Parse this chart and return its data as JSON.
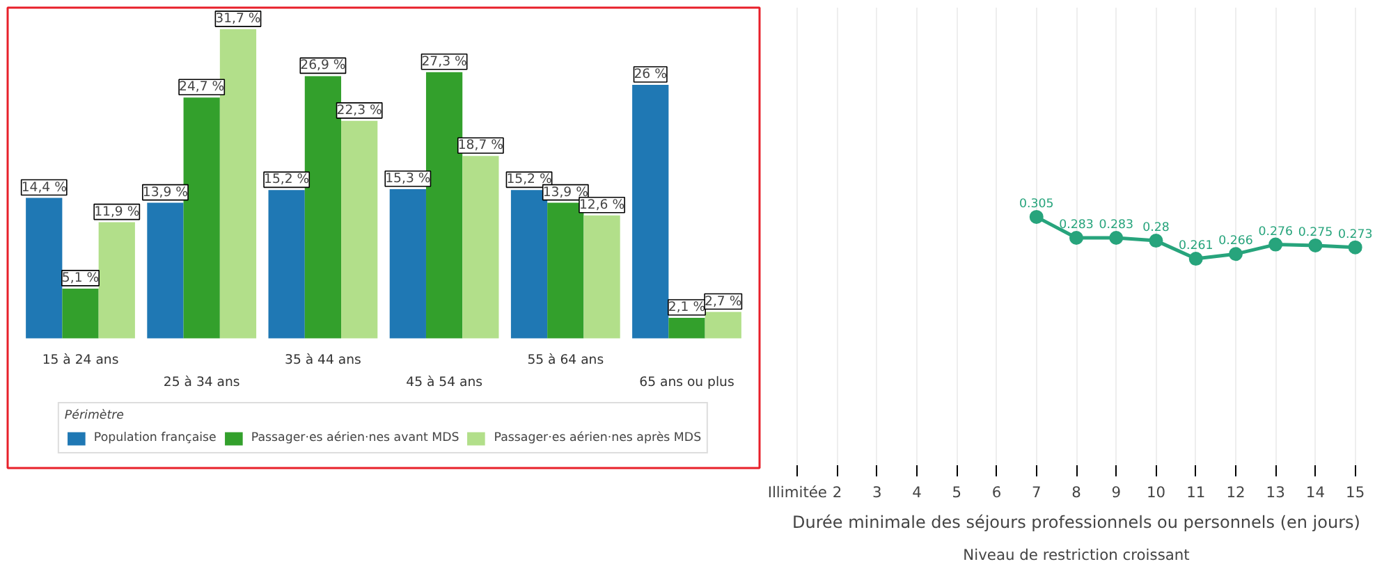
{
  "chart_data": [
    {
      "type": "bar",
      "categories": [
        "15 à 24 ans",
        "25 à 34 ans",
        "35 à 44 ans",
        "45 à 54 ans",
        "55 à 64 ans",
        "65 ans ou plus"
      ],
      "series": [
        {
          "name": "Population française",
          "color": "#1f78b4",
          "values": [
            14.4,
            13.9,
            15.2,
            15.3,
            15.2,
            26
          ],
          "value_labels": [
            "14,4 %",
            "13,9 %",
            "15,2 %",
            "15,3 %",
            "15,2 %",
            "26 %"
          ]
        },
        {
          "name": "Passager·es aérien·nes avant MDS",
          "color": "#33a02c",
          "values": [
            5.1,
            24.7,
            26.9,
            27.3,
            13.9,
            2.1
          ],
          "value_labels": [
            "5,1 %",
            "24,7 %",
            "26,9 %",
            "27,3 %",
            "13,9 %",
            "2,1 %"
          ]
        },
        {
          "name": "Passager·es aérien·nes après MDS",
          "color": "#b2df8a",
          "values": [
            11.9,
            31.7,
            22.3,
            18.7,
            12.6,
            2.7
          ],
          "value_labels": [
            "11,9 %",
            "31,7 %",
            "22,3 %",
            "18,7 %",
            "12,6 %",
            "2,7 %"
          ]
        }
      ],
      "legend": "bottom",
      "legend_title": "Périmètre",
      "tick_labels": "x"
    },
    {
      "type": "line",
      "categories": [
        "Illimitée",
        "2",
        "3",
        "4",
        "5",
        "6",
        "7",
        "8",
        "9",
        "10",
        "11",
        "12",
        "13",
        "14",
        "15"
      ],
      "series": [
        {
          "color": "#27a47c",
          "values": [
            null,
            null,
            null,
            null,
            null,
            null,
            0.305,
            0.283,
            0.283,
            0.28,
            0.261,
            0.266,
            0.276,
            0.275,
            0.273
          ]
        }
      ],
      "data_labels": true,
      "marker": "circle",
      "grid": "x",
      "tick_labels": "x",
      "xlabel": "Durée minimale des séjours professionnels ou personnels (en jours)",
      "annotations": [
        "Niveau de restriction croissant"
      ]
    }
  ]
}
